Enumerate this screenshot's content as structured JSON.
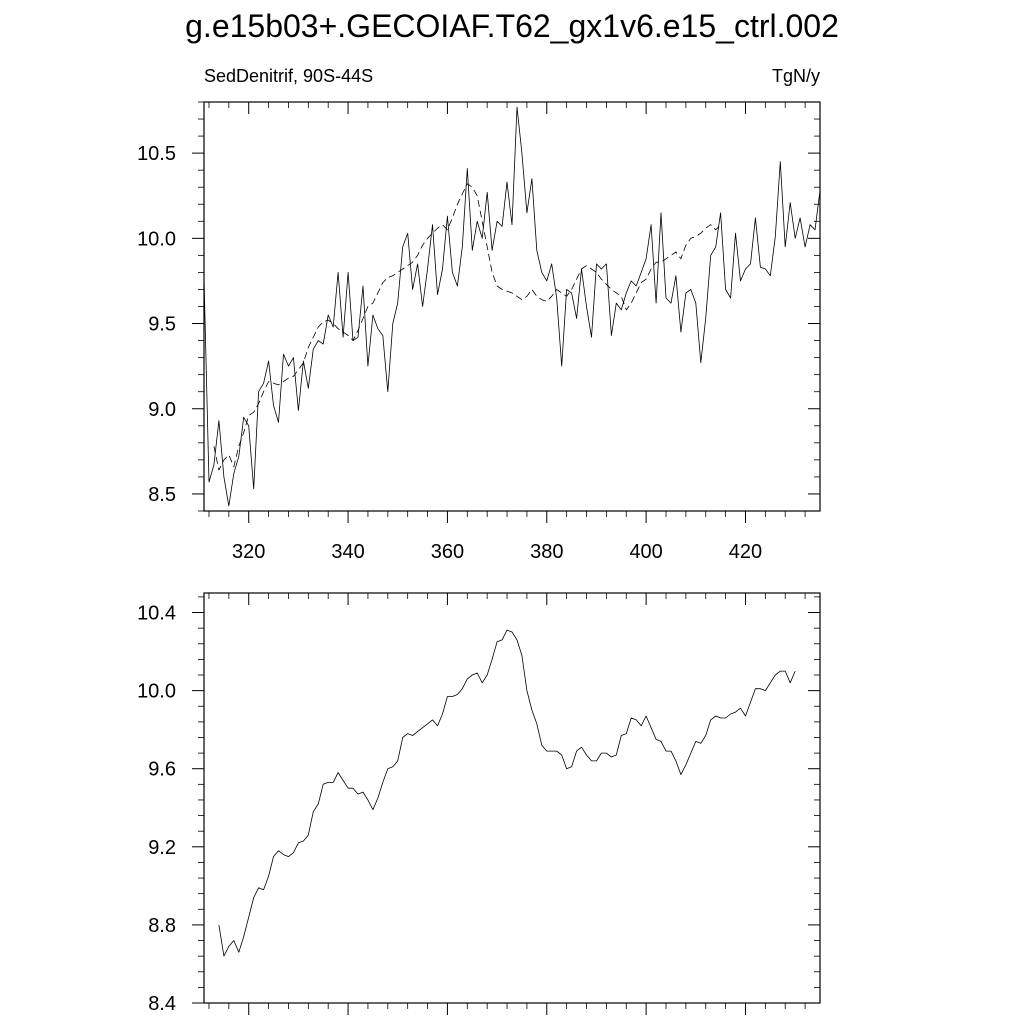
{
  "title": "g.e15b03+.GECOIAF.T62_gx1v6.e15_ctrl.002",
  "left_label": "SedDenitrif, 90S-44S",
  "right_label": "TgN/y",
  "chart_data": [
    {
      "type": "line",
      "xlim": [
        311,
        435
      ],
      "ylim": [
        8.4,
        10.8
      ],
      "x_ticks": [
        320,
        340,
        360,
        380,
        400,
        420
      ],
      "y_ticks": [
        8.5,
        9.0,
        9.5,
        10.0,
        10.5
      ],
      "x_tick_labels": [
        "320",
        "340",
        "360",
        "380",
        "400",
        "420"
      ],
      "y_tick_labels": [
        "8.5",
        "9.0",
        "9.5",
        "10.0",
        "10.5"
      ],
      "series": [
        {
          "style": "solid",
          "x_start": 311,
          "x_step": 1,
          "values": [
            9.77,
            8.57,
            8.67,
            8.93,
            8.6,
            8.43,
            8.62,
            8.72,
            8.95,
            8.9,
            8.53,
            9.1,
            9.15,
            9.28,
            9.02,
            8.92,
            9.32,
            9.25,
            9.3,
            8.99,
            9.28,
            9.12,
            9.35,
            9.4,
            9.38,
            9.55,
            9.48,
            9.8,
            9.42,
            9.8,
            9.4,
            9.42,
            9.72,
            9.25,
            9.55,
            9.47,
            9.43,
            9.1,
            9.5,
            9.62,
            9.95,
            10.03,
            9.7,
            9.85,
            9.6,
            9.82,
            10.08,
            9.67,
            9.82,
            10.13,
            9.8,
            9.72,
            9.95,
            10.41,
            9.93,
            10.1,
            10.0,
            10.27,
            9.93,
            10.1,
            10.07,
            10.33,
            10.08,
            10.77,
            10.5,
            10.15,
            10.35,
            9.93,
            9.8,
            9.75,
            9.85,
            9.65,
            9.25,
            9.7,
            9.68,
            9.53,
            9.82,
            9.6,
            9.42,
            9.85,
            9.82,
            9.85,
            9.43,
            9.62,
            9.58,
            9.68,
            9.75,
            9.72,
            9.8,
            9.88,
            10.08,
            9.62,
            10.15,
            9.65,
            9.62,
            9.78,
            9.45,
            9.68,
            9.7,
            9.62,
            9.27,
            9.53,
            9.9,
            9.95,
            10.15,
            9.7,
            9.65,
            10.03,
            9.75,
            9.82,
            9.85,
            10.12,
            9.83,
            9.82,
            9.78,
            10.01,
            10.45,
            9.95,
            10.21,
            10.0,
            10.12,
            9.95,
            10.08,
            10.05,
            10.28
          ]
        },
        {
          "style": "dashed",
          "x_start": 313,
          "x_step": 1,
          "values": [
            8.78,
            8.64,
            8.7,
            8.73,
            8.66,
            8.78,
            8.86,
            8.96,
            8.98,
            9.03,
            9.1,
            9.16,
            9.15,
            9.14,
            9.16,
            9.18,
            9.19,
            9.23,
            9.27,
            9.36,
            9.42,
            9.48,
            9.51,
            9.52,
            9.5,
            9.47,
            9.45,
            9.43,
            9.4,
            9.46,
            9.53,
            9.6,
            9.62,
            9.68,
            9.74,
            9.77,
            9.78,
            9.8,
            9.82,
            9.84,
            9.86,
            9.9,
            9.96,
            10.0,
            10.03,
            10.06,
            10.08,
            10.05,
            10.12,
            10.2,
            10.26,
            10.32,
            10.3,
            10.25,
            10.1,
            9.95,
            9.8,
            9.72,
            9.7,
            9.69,
            9.68,
            9.66,
            9.64,
            9.66,
            9.7,
            9.66,
            9.64,
            9.63,
            9.66,
            9.7,
            9.68,
            9.66,
            9.7,
            9.76,
            9.82,
            9.84,
            9.82,
            9.8,
            9.76,
            9.73,
            9.7,
            9.68,
            9.66,
            9.58,
            9.62,
            9.68,
            9.74,
            9.76,
            9.82,
            9.86,
            9.86,
            9.88,
            9.9,
            9.92,
            9.88,
            9.96,
            10.0,
            10.01,
            10.03,
            10.06,
            10.08,
            10.05,
            10.08
          ]
        }
      ]
    },
    {
      "type": "line",
      "xlim": [
        311,
        435
      ],
      "ylim": [
        8.4,
        10.5
      ],
      "x_ticks": [
        320,
        340,
        360,
        380,
        400,
        420
      ],
      "y_ticks": [
        8.4,
        8.8,
        9.2,
        9.6,
        10.0,
        10.4
      ],
      "y_tick_labels": [
        "8.4",
        "8.8",
        "9.2",
        "9.6",
        "10.0",
        "10.4"
      ],
      "series": [
        {
          "style": "solid",
          "x_start": 314,
          "x_step": 1,
          "values": [
            8.8,
            8.64,
            8.69,
            8.72,
            8.66,
            8.74,
            8.84,
            8.94,
            8.99,
            8.98,
            9.05,
            9.15,
            9.18,
            9.16,
            9.15,
            9.17,
            9.22,
            9.23,
            9.26,
            9.38,
            9.42,
            9.52,
            9.53,
            9.53,
            9.58,
            9.54,
            9.5,
            9.5,
            9.47,
            9.48,
            9.44,
            9.39,
            9.45,
            9.53,
            9.6,
            9.61,
            9.64,
            9.76,
            9.78,
            9.77,
            9.79,
            9.81,
            9.83,
            9.85,
            9.82,
            9.88,
            9.97,
            9.97,
            9.98,
            10.01,
            10.06,
            10.08,
            10.09,
            10.04,
            10.08,
            10.16,
            10.25,
            10.26,
            10.31,
            10.3,
            10.26,
            10.18,
            10.0,
            9.9,
            9.83,
            9.72,
            9.69,
            9.69,
            9.69,
            9.67,
            9.6,
            9.61,
            9.69,
            9.71,
            9.67,
            9.64,
            9.64,
            9.68,
            9.68,
            9.66,
            9.67,
            9.77,
            9.78,
            9.86,
            9.85,
            9.82,
            9.87,
            9.81,
            9.75,
            9.74,
            9.69,
            9.69,
            9.64,
            9.57,
            9.62,
            9.68,
            9.74,
            9.73,
            9.77,
            9.85,
            9.87,
            9.86,
            9.86,
            9.88,
            9.89,
            9.91,
            9.87,
            9.94,
            10.01,
            10.01,
            10.0,
            10.04,
            10.08,
            10.1,
            10.1,
            10.04,
            10.1
          ]
        }
      ]
    }
  ]
}
